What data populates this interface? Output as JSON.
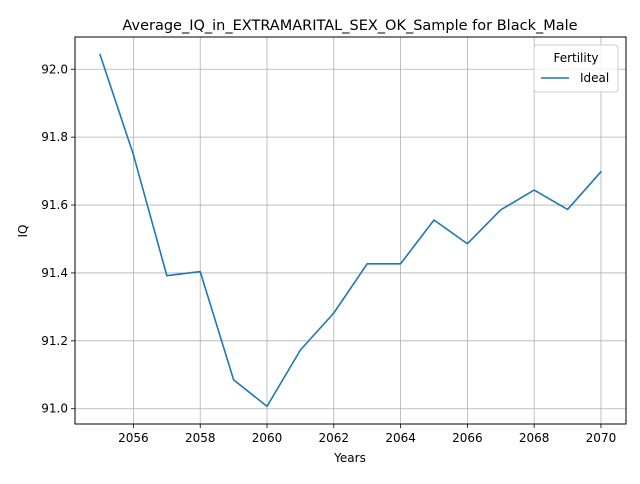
{
  "chart_data": {
    "type": "line",
    "title": "Average_IQ_in_EXTRAMARITAL_SEX_OK_Sample for Black_Male",
    "xlabel": "Years",
    "ylabel": "IQ",
    "x": [
      2055,
      2056,
      2057,
      2058,
      2059,
      2060,
      2061,
      2062,
      2063,
      2064,
      2065,
      2066,
      2067,
      2068,
      2069,
      2070
    ],
    "series": [
      {
        "name": "Ideal",
        "color": "#1f77b4",
        "values": [
          92.043,
          91.748,
          91.392,
          91.404,
          91.085,
          91.007,
          91.173,
          91.282,
          91.427,
          91.427,
          91.556,
          91.486,
          91.586,
          91.644,
          91.587,
          91.698
        ]
      }
    ],
    "xlim": [
      2054.25,
      2070.75
    ],
    "ylim": [
      90.955,
      92.095
    ],
    "xticks": [
      2056,
      2058,
      2060,
      2062,
      2064,
      2066,
      2068,
      2070
    ],
    "yticks": [
      91.0,
      91.2,
      91.4,
      91.6,
      91.8,
      92.0
    ],
    "ytick_labels": [
      "91.0",
      "91.2",
      "91.4",
      "91.6",
      "91.8",
      "92.0"
    ],
    "grid": true,
    "legend": {
      "title": "Fertility",
      "placement": "top-right"
    }
  }
}
